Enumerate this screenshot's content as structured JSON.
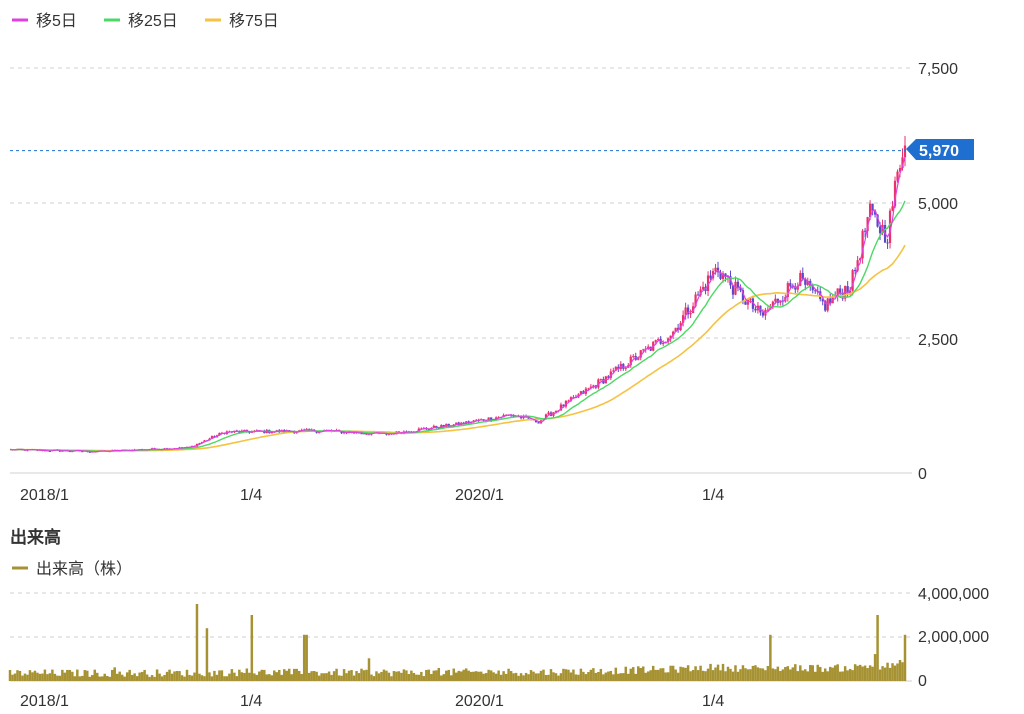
{
  "chart_data": [
    {
      "type": "candlestick",
      "name_text": "",
      "legend": [
        {
          "label": "移5日",
          "color": "#e040e0"
        },
        {
          "label": "移25日",
          "color": "#4cd964"
        },
        {
          "label": "移75日",
          "color": "#f5c242"
        }
      ],
      "x_ticks": [
        "2018/1",
        "1/4",
        "2020/1",
        "1/4"
      ],
      "y_ticks": [
        "7,500",
        "5,000",
        "2,500",
        "0"
      ],
      "y_tick_values": [
        7500,
        5000,
        2500,
        0
      ],
      "ylim": [
        0,
        7500
      ],
      "current_price": 5970,
      "current_price_label": "5,970",
      "colors": {
        "up": "#e8326c",
        "down": "#5a49c8",
        "ma5": "#e040e0",
        "ma25": "#4cd964",
        "ma75": "#f5c242",
        "marker": "#1f6fd1"
      },
      "series_key_points": [
        {
          "t": 0.0,
          "v": 430
        },
        {
          "t": 0.1,
          "v": 400
        },
        {
          "t": 0.2,
          "v": 470
        },
        {
          "t": 0.24,
          "v": 760
        },
        {
          "t": 0.35,
          "v": 780
        },
        {
          "t": 0.42,
          "v": 720
        },
        {
          "t": 0.5,
          "v": 900
        },
        {
          "t": 0.56,
          "v": 1080
        },
        {
          "t": 0.59,
          "v": 950
        },
        {
          "t": 0.66,
          "v": 1700
        },
        {
          "t": 0.74,
          "v": 2600
        },
        {
          "t": 0.79,
          "v": 3800
        },
        {
          "t": 0.81,
          "v": 3400
        },
        {
          "t": 0.84,
          "v": 2900
        },
        {
          "t": 0.88,
          "v": 3600
        },
        {
          "t": 0.91,
          "v": 3100
        },
        {
          "t": 0.94,
          "v": 3500
        },
        {
          "t": 0.96,
          "v": 4800
        },
        {
          "t": 0.98,
          "v": 4400
        },
        {
          "t": 1.0,
          "v": 6300
        }
      ]
    },
    {
      "type": "bar",
      "section_title": "出来高",
      "legend": [
        {
          "label": "出来高（株）",
          "color": "#a69232"
        }
      ],
      "x_ticks": [
        "2018/1",
        "1/4",
        "2020/1",
        "1/4"
      ],
      "y_ticks": [
        "4,000,000",
        "2,000,000",
        "0"
      ],
      "y_tick_values": [
        4000000,
        2000000,
        0
      ],
      "ylim": [
        0,
        4000000
      ],
      "volume_spikes": [
        {
          "t": 0.21,
          "v": 3500000
        },
        {
          "t": 0.22,
          "v": 2400000
        },
        {
          "t": 0.27,
          "v": 3000000
        },
        {
          "t": 0.33,
          "v": 2100000
        },
        {
          "t": 0.85,
          "v": 2100000
        },
        {
          "t": 0.97,
          "v": 3000000
        },
        {
          "t": 1.0,
          "v": 2100000
        }
      ]
    }
  ]
}
